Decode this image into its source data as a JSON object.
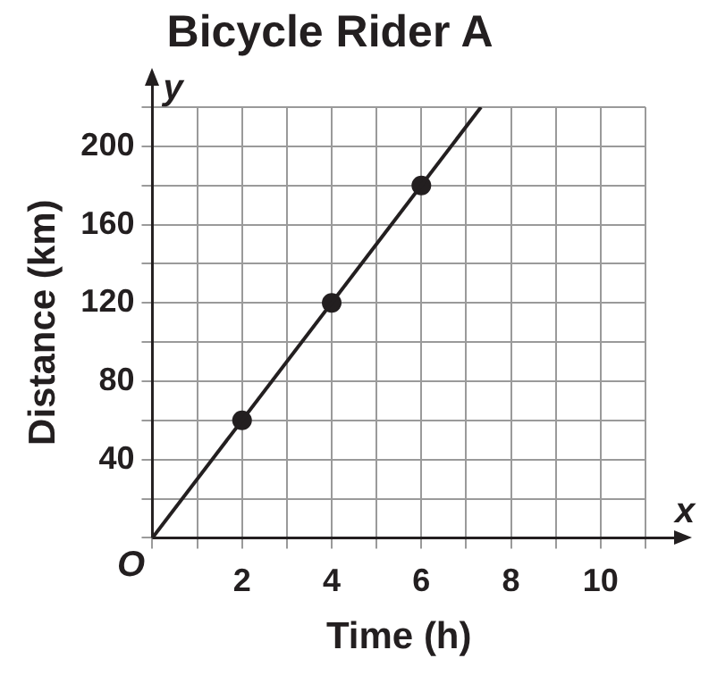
{
  "chart_data": {
    "type": "line",
    "title": "Bicycle Rider A",
    "xlabel": "Time (h)",
    "ylabel": "Distance (km)",
    "annotations": [
      "y",
      "x",
      "O"
    ],
    "series": [
      {
        "type": "line",
        "color": "#231f20",
        "marker": "none",
        "x": [
          0,
          7.33
        ],
        "values": [
          0,
          220
        ]
      },
      {
        "type": "scatter",
        "color": "#231f20",
        "marker": "circle",
        "x": [
          2,
          4,
          6
        ],
        "values": [
          60,
          120,
          180
        ]
      }
    ],
    "xlim": [
      0,
      11
    ],
    "ylim": [
      0,
      220
    ],
    "xticks": [
      {
        "value": 0,
        "label": null
      },
      {
        "value": 1,
        "label": null
      },
      2,
      {
        "value": 3,
        "label": null
      },
      4,
      {
        "value": 5,
        "label": null
      },
      6,
      {
        "value": 7,
        "label": null
      },
      8,
      {
        "value": 9,
        "label": null
      },
      10,
      {
        "value": 11,
        "label": null
      }
    ],
    "yticks": [
      {
        "value": 0,
        "label": null
      },
      {
        "value": 20,
        "label": null
      },
      40,
      {
        "value": 60,
        "label": null
      },
      80,
      {
        "value": 100,
        "label": null
      },
      120,
      {
        "value": 140,
        "label": null
      },
      160,
      {
        "value": 180,
        "label": null
      },
      200,
      {
        "value": 220,
        "label": null
      }
    ],
    "grid": true,
    "legend": false
  }
}
